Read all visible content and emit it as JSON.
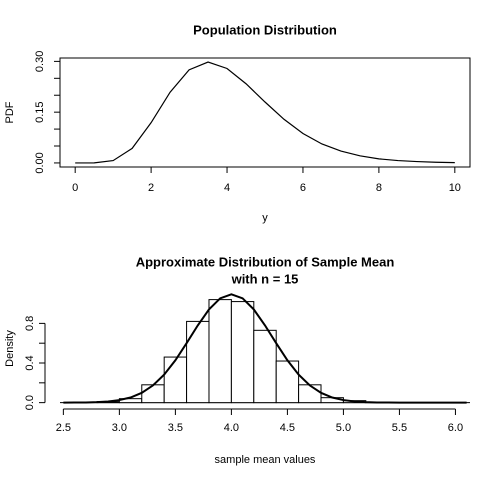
{
  "chart_data": [
    {
      "type": "line",
      "title": "Population Distribution",
      "xlabel": "y",
      "ylabel": "PDF",
      "x": [
        0,
        0.5,
        1,
        1.5,
        2,
        2.5,
        3,
        3.5,
        4,
        4.5,
        5,
        5.5,
        6,
        6.5,
        7,
        7.5,
        8,
        8.5,
        9,
        9.5,
        10
      ],
      "values": [
        0,
        0.0001,
        0.007,
        0.043,
        0.119,
        0.209,
        0.275,
        0.298,
        0.279,
        0.234,
        0.18,
        0.129,
        0.087,
        0.056,
        0.035,
        0.021,
        0.012,
        0.007,
        0.004,
        0.002,
        0.001
      ],
      "color": "#000000",
      "xlim": [
        -0.4,
        10.4
      ],
      "xticks": [
        0,
        2,
        4,
        6,
        8,
        10
      ],
      "ylim": [
        -0.012,
        0.31
      ],
      "yticks": [
        {
          "value": 0,
          "label": "0.00"
        },
        {
          "value": 0.15,
          "label": "0.15"
        },
        {
          "value": 0.3,
          "label": "0.30"
        }
      ],
      "yminorticks": [
        0.05,
        0.1,
        0.2,
        0.25
      ],
      "frame": true
    },
    {
      "type": "histogram",
      "title": "Approximate Distribution of Sample Mean",
      "subtitle": "with n =  15",
      "xlabel": "sample mean values",
      "ylabel": "Density",
      "bins": [
        2.8,
        3.0,
        3.2,
        3.4,
        3.6,
        3.8,
        4.0,
        4.2,
        4.4,
        4.6,
        4.8,
        5.0,
        5.2,
        5.4
      ],
      "values": [
        0.01,
        0.04,
        0.18,
        0.46,
        0.82,
        1.04,
        1.02,
        0.73,
        0.42,
        0.18,
        0.05,
        0.02,
        0.005
      ],
      "color": "#ffffff",
      "curve": {
        "x": [
          2.5,
          2.6,
          2.7,
          2.8,
          2.9,
          3.0,
          3.1,
          3.2,
          3.3,
          3.4,
          3.5,
          3.6,
          3.7,
          3.8,
          3.9,
          4.0,
          4.1,
          4.2,
          4.3,
          4.4,
          4.5,
          4.6,
          4.7,
          4.8,
          4.9,
          5.0,
          5.1,
          5.2,
          5.3,
          5.4,
          5.5,
          5.6,
          5.7,
          5.8,
          5.9,
          6.0,
          6.1
        ],
        "values": [
          0,
          0.001,
          0.002,
          0.005,
          0.012,
          0.026,
          0.052,
          0.099,
          0.174,
          0.283,
          0.428,
          0.6,
          0.78,
          0.941,
          1.053,
          1.093,
          1.053,
          0.941,
          0.78,
          0.6,
          0.428,
          0.283,
          0.174,
          0.099,
          0.052,
          0.026,
          0.012,
          0.005,
          0.002,
          0.001,
          0,
          0,
          0,
          0,
          0,
          0,
          0
        ],
        "color": "#000000"
      },
      "xlim": [
        2.47,
        6.13
      ],
      "xticks": [
        2.5,
        {
          "value": 3,
          "label": "3.0"
        },
        3.5,
        {
          "value": 4,
          "label": "4.0"
        },
        4.5,
        {
          "value": 5,
          "label": "5.0"
        },
        5.5,
        {
          "value": 6,
          "label": "6.0"
        }
      ],
      "ylim": [
        -0.044,
        1.137
      ],
      "yticks": [
        {
          "value": 0,
          "label": "0.0"
        },
        0.4,
        0.8
      ],
      "yminorticks": [
        0.2,
        0.6
      ],
      "frame": false
    }
  ]
}
